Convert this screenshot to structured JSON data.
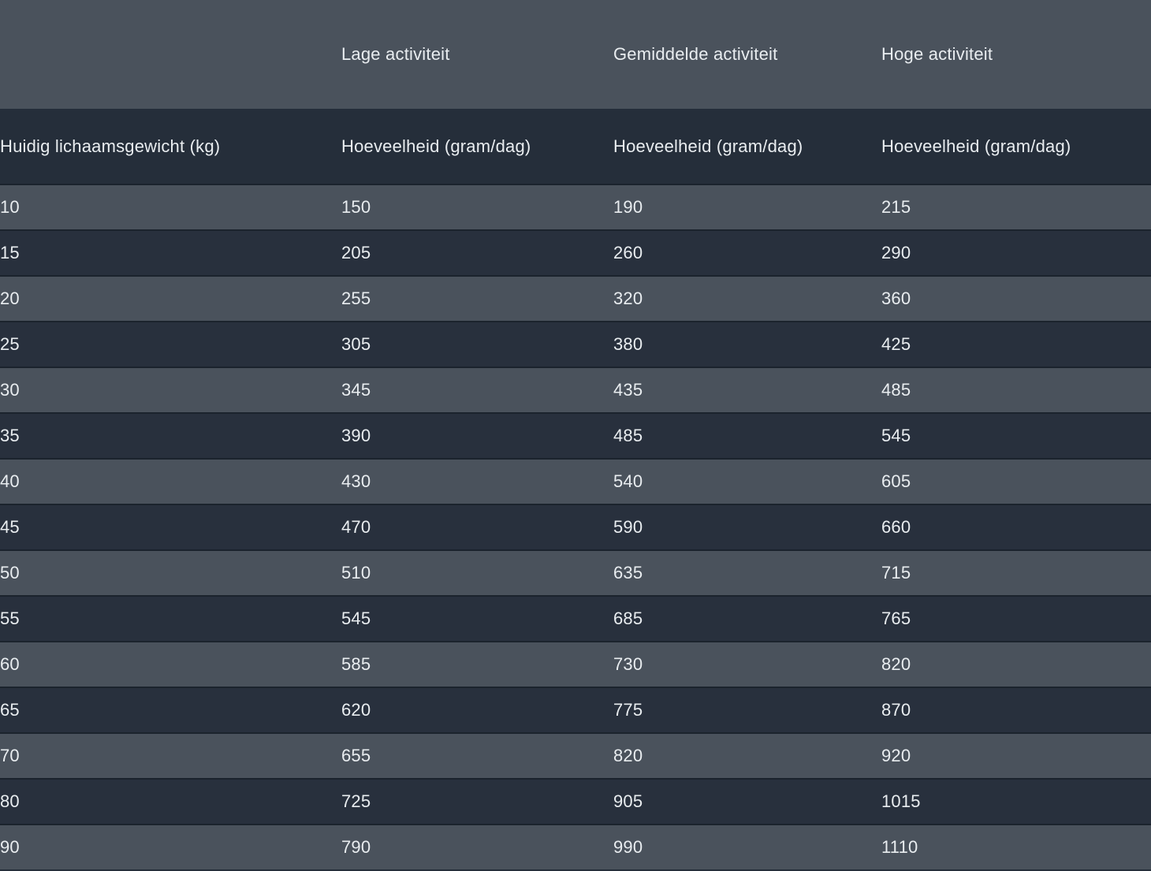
{
  "table": {
    "activity_headers": [
      "",
      "Lage activiteit",
      "Gemiddelde activiteit",
      "Hoge activiteit"
    ],
    "column_headers": [
      "Huidig lichaamsgewicht (kg)",
      "Hoeveelheid (gram/dag)",
      "Hoeveelheid (gram/dag)",
      "Hoeveelheid (gram/dag)"
    ],
    "rows": [
      [
        "10",
        "150",
        "190",
        "215"
      ],
      [
        "15",
        "205",
        "260",
        "290"
      ],
      [
        "20",
        "255",
        "320",
        "360"
      ],
      [
        "25",
        "305",
        "380",
        "425"
      ],
      [
        "30",
        "345",
        "435",
        "485"
      ],
      [
        "35",
        "390",
        "485",
        "545"
      ],
      [
        "40",
        "430",
        "540",
        "605"
      ],
      [
        "45",
        "470",
        "590",
        "660"
      ],
      [
        "50",
        "510",
        "635",
        "715"
      ],
      [
        "55",
        "545",
        "685",
        "765"
      ],
      [
        "60",
        "585",
        "730",
        "820"
      ],
      [
        "65",
        "620",
        "775",
        "870"
      ],
      [
        "70",
        "655",
        "820",
        "920"
      ],
      [
        "80",
        "725",
        "905",
        "1015"
      ],
      [
        "90",
        "790",
        "990",
        "1110"
      ]
    ]
  },
  "chart_data": {
    "type": "table",
    "title": "",
    "categories_label": "Huidig lichaamsgewicht (kg)",
    "categories": [
      10,
      15,
      20,
      25,
      30,
      35,
      40,
      45,
      50,
      55,
      60,
      65,
      70,
      80,
      90
    ],
    "value_unit": "Hoeveelheid (gram/dag)",
    "series": [
      {
        "name": "Lage activiteit",
        "values": [
          150,
          205,
          255,
          305,
          345,
          390,
          430,
          470,
          510,
          545,
          585,
          620,
          655,
          725,
          790
        ]
      },
      {
        "name": "Gemiddelde activiteit",
        "values": [
          190,
          260,
          320,
          380,
          435,
          485,
          540,
          590,
          635,
          685,
          730,
          775,
          820,
          905,
          990
        ]
      },
      {
        "name": "Hoge activiteit",
        "values": [
          215,
          290,
          360,
          425,
          485,
          545,
          605,
          660,
          715,
          765,
          820,
          870,
          920,
          1015,
          1110
        ]
      }
    ]
  },
  "colors": {
    "row_light_bg": "#4a525c",
    "row_dark_bg": "#28303d",
    "header_dark_bg": "#252e3a",
    "row_border": "#1b232d",
    "text": "#e9edf0"
  }
}
